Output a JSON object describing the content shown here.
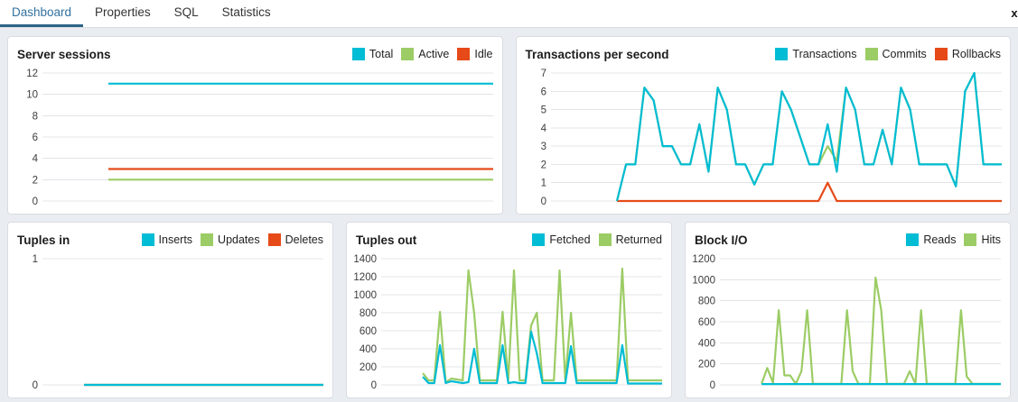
{
  "tabs": {
    "items": [
      {
        "label": "Dashboard",
        "active": true
      },
      {
        "label": "Properties",
        "active": false
      },
      {
        "label": "SQL",
        "active": false
      },
      {
        "label": "Statistics",
        "active": false
      }
    ],
    "active_text_color": "#31719f",
    "active_underline_color": "#2c6487",
    "close_label": "x"
  },
  "palette": {
    "cyan": "#00bcd4",
    "green": "#9ccc65",
    "orange": "#e64a19",
    "gridline": "#e3e4e8",
    "tick_text": "#3c3c3c"
  },
  "chart_data": [
    {
      "type": "line",
      "title": "Server sessions",
      "ylim": [
        0,
        12
      ],
      "ystep": 2,
      "grid": true,
      "legend_position": "top-right",
      "x_points_total": 50,
      "x_start_index": 7,
      "series": [
        {
          "name": "Total",
          "color": "#00bcd4",
          "values": [
            11,
            11,
            11,
            11,
            11,
            11,
            11,
            11,
            11,
            11,
            11,
            11,
            11,
            11,
            11,
            11,
            11,
            11,
            11,
            11,
            11,
            11,
            11,
            11,
            11,
            11,
            11,
            11,
            11,
            11,
            11,
            11,
            11,
            11,
            11,
            11,
            11,
            11,
            11,
            11,
            11,
            11,
            11
          ]
        },
        {
          "name": "Active",
          "color": "#9ccc65",
          "values": [
            2,
            2,
            2,
            2,
            2,
            2,
            2,
            2,
            2,
            2,
            2,
            2,
            2,
            2,
            2,
            2,
            2,
            2,
            2,
            2,
            2,
            2,
            2,
            2,
            2,
            2,
            2,
            2,
            2,
            2,
            2,
            2,
            2,
            2,
            2,
            2,
            2,
            2,
            2,
            2,
            2,
            2,
            2
          ]
        },
        {
          "name": "Idle",
          "color": "#e64a19",
          "values": [
            3,
            3,
            3,
            3,
            3,
            3,
            3,
            3,
            3,
            3,
            3,
            3,
            3,
            3,
            3,
            3,
            3,
            3,
            3,
            3,
            3,
            3,
            3,
            3,
            3,
            3,
            3,
            3,
            3,
            3,
            3,
            3,
            3,
            3,
            3,
            3,
            3,
            3,
            3,
            3,
            3,
            3,
            3
          ]
        }
      ]
    },
    {
      "type": "line",
      "title": "Transactions per second",
      "ylim": [
        0,
        7
      ],
      "ystep": 1,
      "grid": true,
      "legend_position": "top-right",
      "x_points_total": 50,
      "x_start_index": 7,
      "series": [
        {
          "name": "Transactions",
          "color": "#00bcd4",
          "values": [
            0,
            2,
            2,
            6.2,
            5.5,
            3,
            3,
            2,
            2,
            4.2,
            1.6,
            6.2,
            5,
            2,
            2,
            0.9,
            2,
            2,
            6,
            5,
            3.5,
            2,
            2,
            4.2,
            1.6,
            6.2,
            5,
            2,
            2,
            3.9,
            2,
            6.2,
            5,
            2,
            2,
            2,
            2,
            0.8,
            6,
            7,
            2,
            2,
            2
          ]
        },
        {
          "name": "Commits",
          "color": "#9ccc65",
          "values": [
            0,
            2,
            2,
            6.2,
            5.5,
            3,
            3,
            2,
            2,
            4.2,
            1.6,
            6.2,
            5,
            2,
            2,
            0.9,
            2,
            2,
            6,
            5,
            3.5,
            2,
            2,
            3,
            2.2,
            6.2,
            5,
            2,
            2,
            3.9,
            2,
            6.2,
            5,
            2,
            2,
            2,
            2,
            0.8,
            6,
            7,
            2,
            2,
            2
          ]
        },
        {
          "name": "Rollbacks",
          "color": "#e64a19",
          "values": [
            0,
            0,
            0,
            0,
            0,
            0,
            0,
            0,
            0,
            0,
            0,
            0,
            0,
            0,
            0,
            0,
            0,
            0,
            0,
            0,
            0,
            0,
            0,
            1,
            0,
            0,
            0,
            0,
            0,
            0,
            0,
            0,
            0,
            0,
            0,
            0,
            0,
            0,
            0,
            0,
            0,
            0,
            0
          ]
        }
      ]
    },
    {
      "type": "line",
      "title": "Tuples in",
      "ylim": [
        0,
        1
      ],
      "ystep": 1,
      "grid": true,
      "legend_position": "top-right",
      "x_points_total": 50,
      "x_start_index": 7,
      "series": [
        {
          "name": "Inserts",
          "color": "#00bcd4",
          "values": [
            0,
            0,
            0,
            0,
            0,
            0,
            0,
            0,
            0,
            0,
            0,
            0,
            0,
            0,
            0,
            0,
            0,
            0,
            0,
            0,
            0,
            0,
            0,
            0,
            0,
            0,
            0,
            0,
            0,
            0,
            0,
            0,
            0,
            0,
            0,
            0,
            0,
            0,
            0,
            0,
            0,
            0,
            0
          ]
        },
        {
          "name": "Updates",
          "color": "#9ccc65",
          "values": [
            0,
            0,
            0,
            0,
            0,
            0,
            0,
            0,
            0,
            0,
            0,
            0,
            0,
            0,
            0,
            0,
            0,
            0,
            0,
            0,
            0,
            0,
            0,
            0,
            0,
            0,
            0,
            0,
            0,
            0,
            0,
            0,
            0,
            0,
            0,
            0,
            0,
            0,
            0,
            0,
            0,
            0,
            0
          ]
        },
        {
          "name": "Deletes",
          "color": "#e64a19",
          "values": [
            0,
            0,
            0,
            0,
            0,
            0,
            0,
            0,
            0,
            0,
            0,
            0,
            0,
            0,
            0,
            0,
            0,
            0,
            0,
            0,
            0,
            0,
            0,
            0,
            0,
            0,
            0,
            0,
            0,
            0,
            0,
            0,
            0,
            0,
            0,
            0,
            0,
            0,
            0,
            0,
            0,
            0,
            0
          ]
        }
      ]
    },
    {
      "type": "line",
      "title": "Tuples out",
      "ylim": [
        0,
        1400
      ],
      "ystep": 200,
      "grid": true,
      "legend_position": "top-right",
      "x_points_total": 50,
      "x_start_index": 7,
      "series": [
        {
          "name": "Fetched",
          "color": "#00bcd4",
          "values": [
            90,
            20,
            20,
            440,
            20,
            40,
            30,
            20,
            30,
            400,
            20,
            20,
            20,
            20,
            440,
            20,
            30,
            20,
            20,
            590,
            350,
            20,
            20,
            20,
            20,
            20,
            430,
            20,
            20,
            20,
            20,
            20,
            20,
            20,
            20,
            440,
            15,
            15,
            15,
            15,
            15,
            15,
            15
          ]
        },
        {
          "name": "Returned",
          "color": "#9ccc65",
          "values": [
            130,
            50,
            50,
            810,
            30,
            70,
            60,
            50,
            1270,
            800,
            50,
            50,
            50,
            50,
            810,
            50,
            1270,
            50,
            50,
            660,
            800,
            50,
            50,
            50,
            1270,
            50,
            800,
            50,
            50,
            50,
            50,
            50,
            50,
            50,
            50,
            1290,
            50,
            50,
            50,
            50,
            50,
            50,
            50
          ]
        }
      ]
    },
    {
      "type": "line",
      "title": "Block I/O",
      "ylim": [
        0,
        1200
      ],
      "ystep": 200,
      "grid": true,
      "legend_position": "top-right",
      "x_points_total": 50,
      "x_start_index": 7,
      "series": [
        {
          "name": "Reads",
          "color": "#00bcd4",
          "values": [
            8,
            8,
            8,
            8,
            8,
            8,
            8,
            8,
            8,
            8,
            8,
            8,
            8,
            8,
            8,
            8,
            8,
            8,
            8,
            8,
            8,
            8,
            8,
            8,
            8,
            8,
            8,
            8,
            8,
            8,
            8,
            8,
            8,
            8,
            8,
            8,
            8,
            8,
            8,
            8,
            8,
            8,
            8
          ]
        },
        {
          "name": "Hits",
          "color": "#9ccc65",
          "values": [
            10,
            160,
            20,
            710,
            90,
            90,
            10,
            130,
            710,
            10,
            10,
            10,
            10,
            10,
            10,
            710,
            130,
            10,
            10,
            10,
            1020,
            710,
            10,
            10,
            10,
            10,
            130,
            10,
            710,
            10,
            10,
            10,
            10,
            10,
            10,
            710,
            80,
            10,
            10,
            10,
            10,
            10,
            10
          ]
        }
      ]
    }
  ]
}
